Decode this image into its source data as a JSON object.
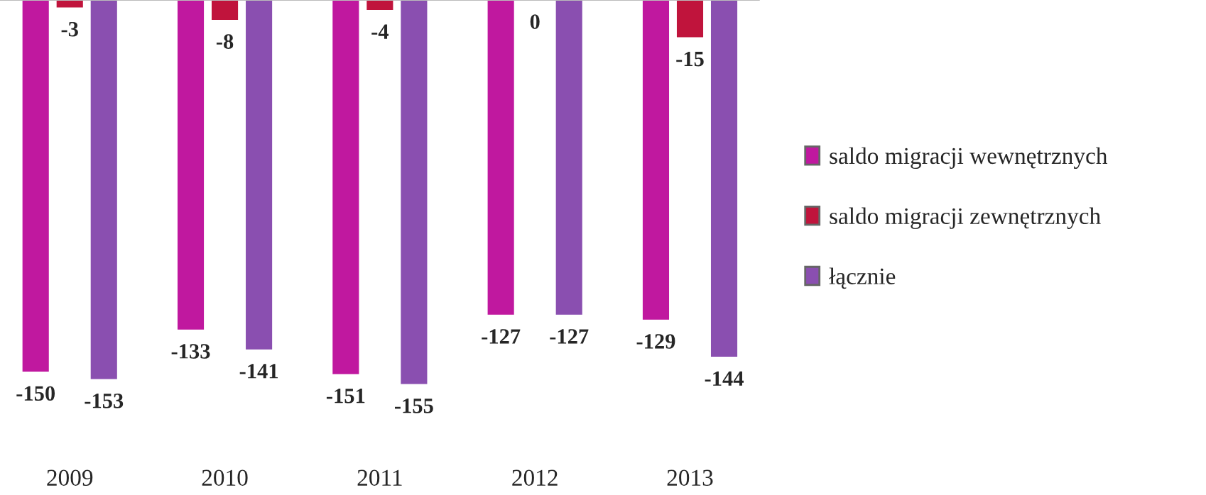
{
  "chart_data": {
    "type": "bar",
    "categories": [
      "2009",
      "2010",
      "2011",
      "2012",
      "2013"
    ],
    "series": [
      {
        "name": "saldo migracji wewnętrznych",
        "color": "#c0189f",
        "values": [
          -150,
          -133,
          -151,
          -127,
          -129
        ]
      },
      {
        "name": "saldo migracji zewnętrznych",
        "color": "#c0143c",
        "values": [
          -3,
          -8,
          -4,
          0,
          -15
        ]
      },
      {
        "name": "łącznie",
        "color": "#8a4fb0",
        "values": [
          -153,
          -141,
          -155,
          -127,
          -144
        ]
      }
    ],
    "data_labels": true,
    "legend": "right",
    "grid": false
  }
}
